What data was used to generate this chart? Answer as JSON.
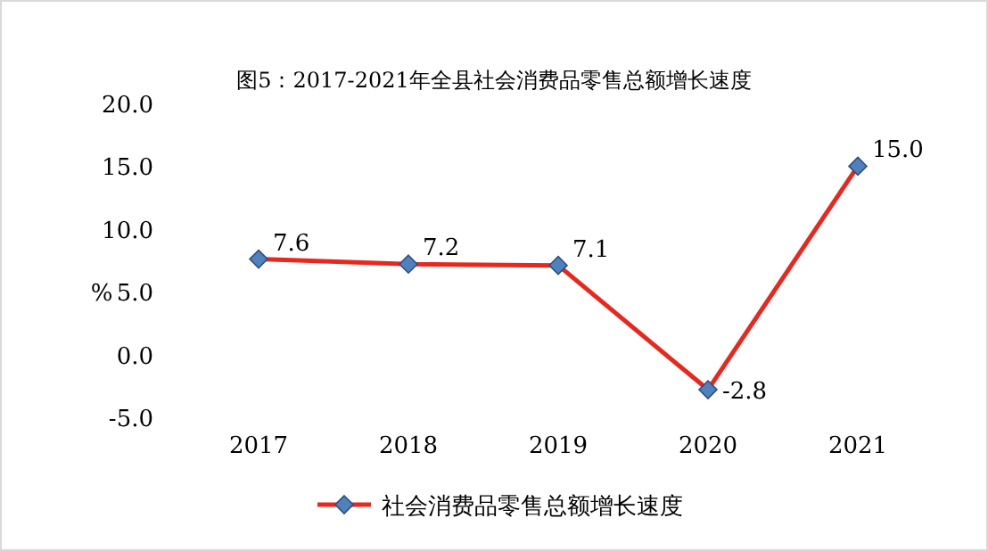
{
  "chart_data": {
    "type": "line",
    "title": "图5：2017-2021年全县社会消费品零售总额增长速度",
    "ylabel": "%",
    "categories": [
      "2017",
      "2018",
      "2019",
      "2020",
      "2021"
    ],
    "series": [
      {
        "name": "社会消费品零售总额增长速度",
        "color": "#e8281e",
        "values": [
          7.6,
          7.2,
          7.1,
          -2.8,
          15.0
        ],
        "value_labels": [
          "7.6",
          "7.2",
          "7.1",
          "-2.8",
          "15.0"
        ]
      }
    ],
    "ylim": [
      -5,
      20
    ],
    "yticks": [
      {
        "value": -5,
        "label": "-5.0"
      },
      {
        "value": 0,
        "label": "0.0"
      },
      {
        "value": 5,
        "label": "5.0"
      },
      {
        "value": 10,
        "label": "10.0"
      },
      {
        "value": 15,
        "label": "15.0"
      },
      {
        "value": 20,
        "label": "20.0"
      }
    ],
    "marker": "diamond",
    "line_style": "solid",
    "legend": "bottom",
    "grid": false
  }
}
